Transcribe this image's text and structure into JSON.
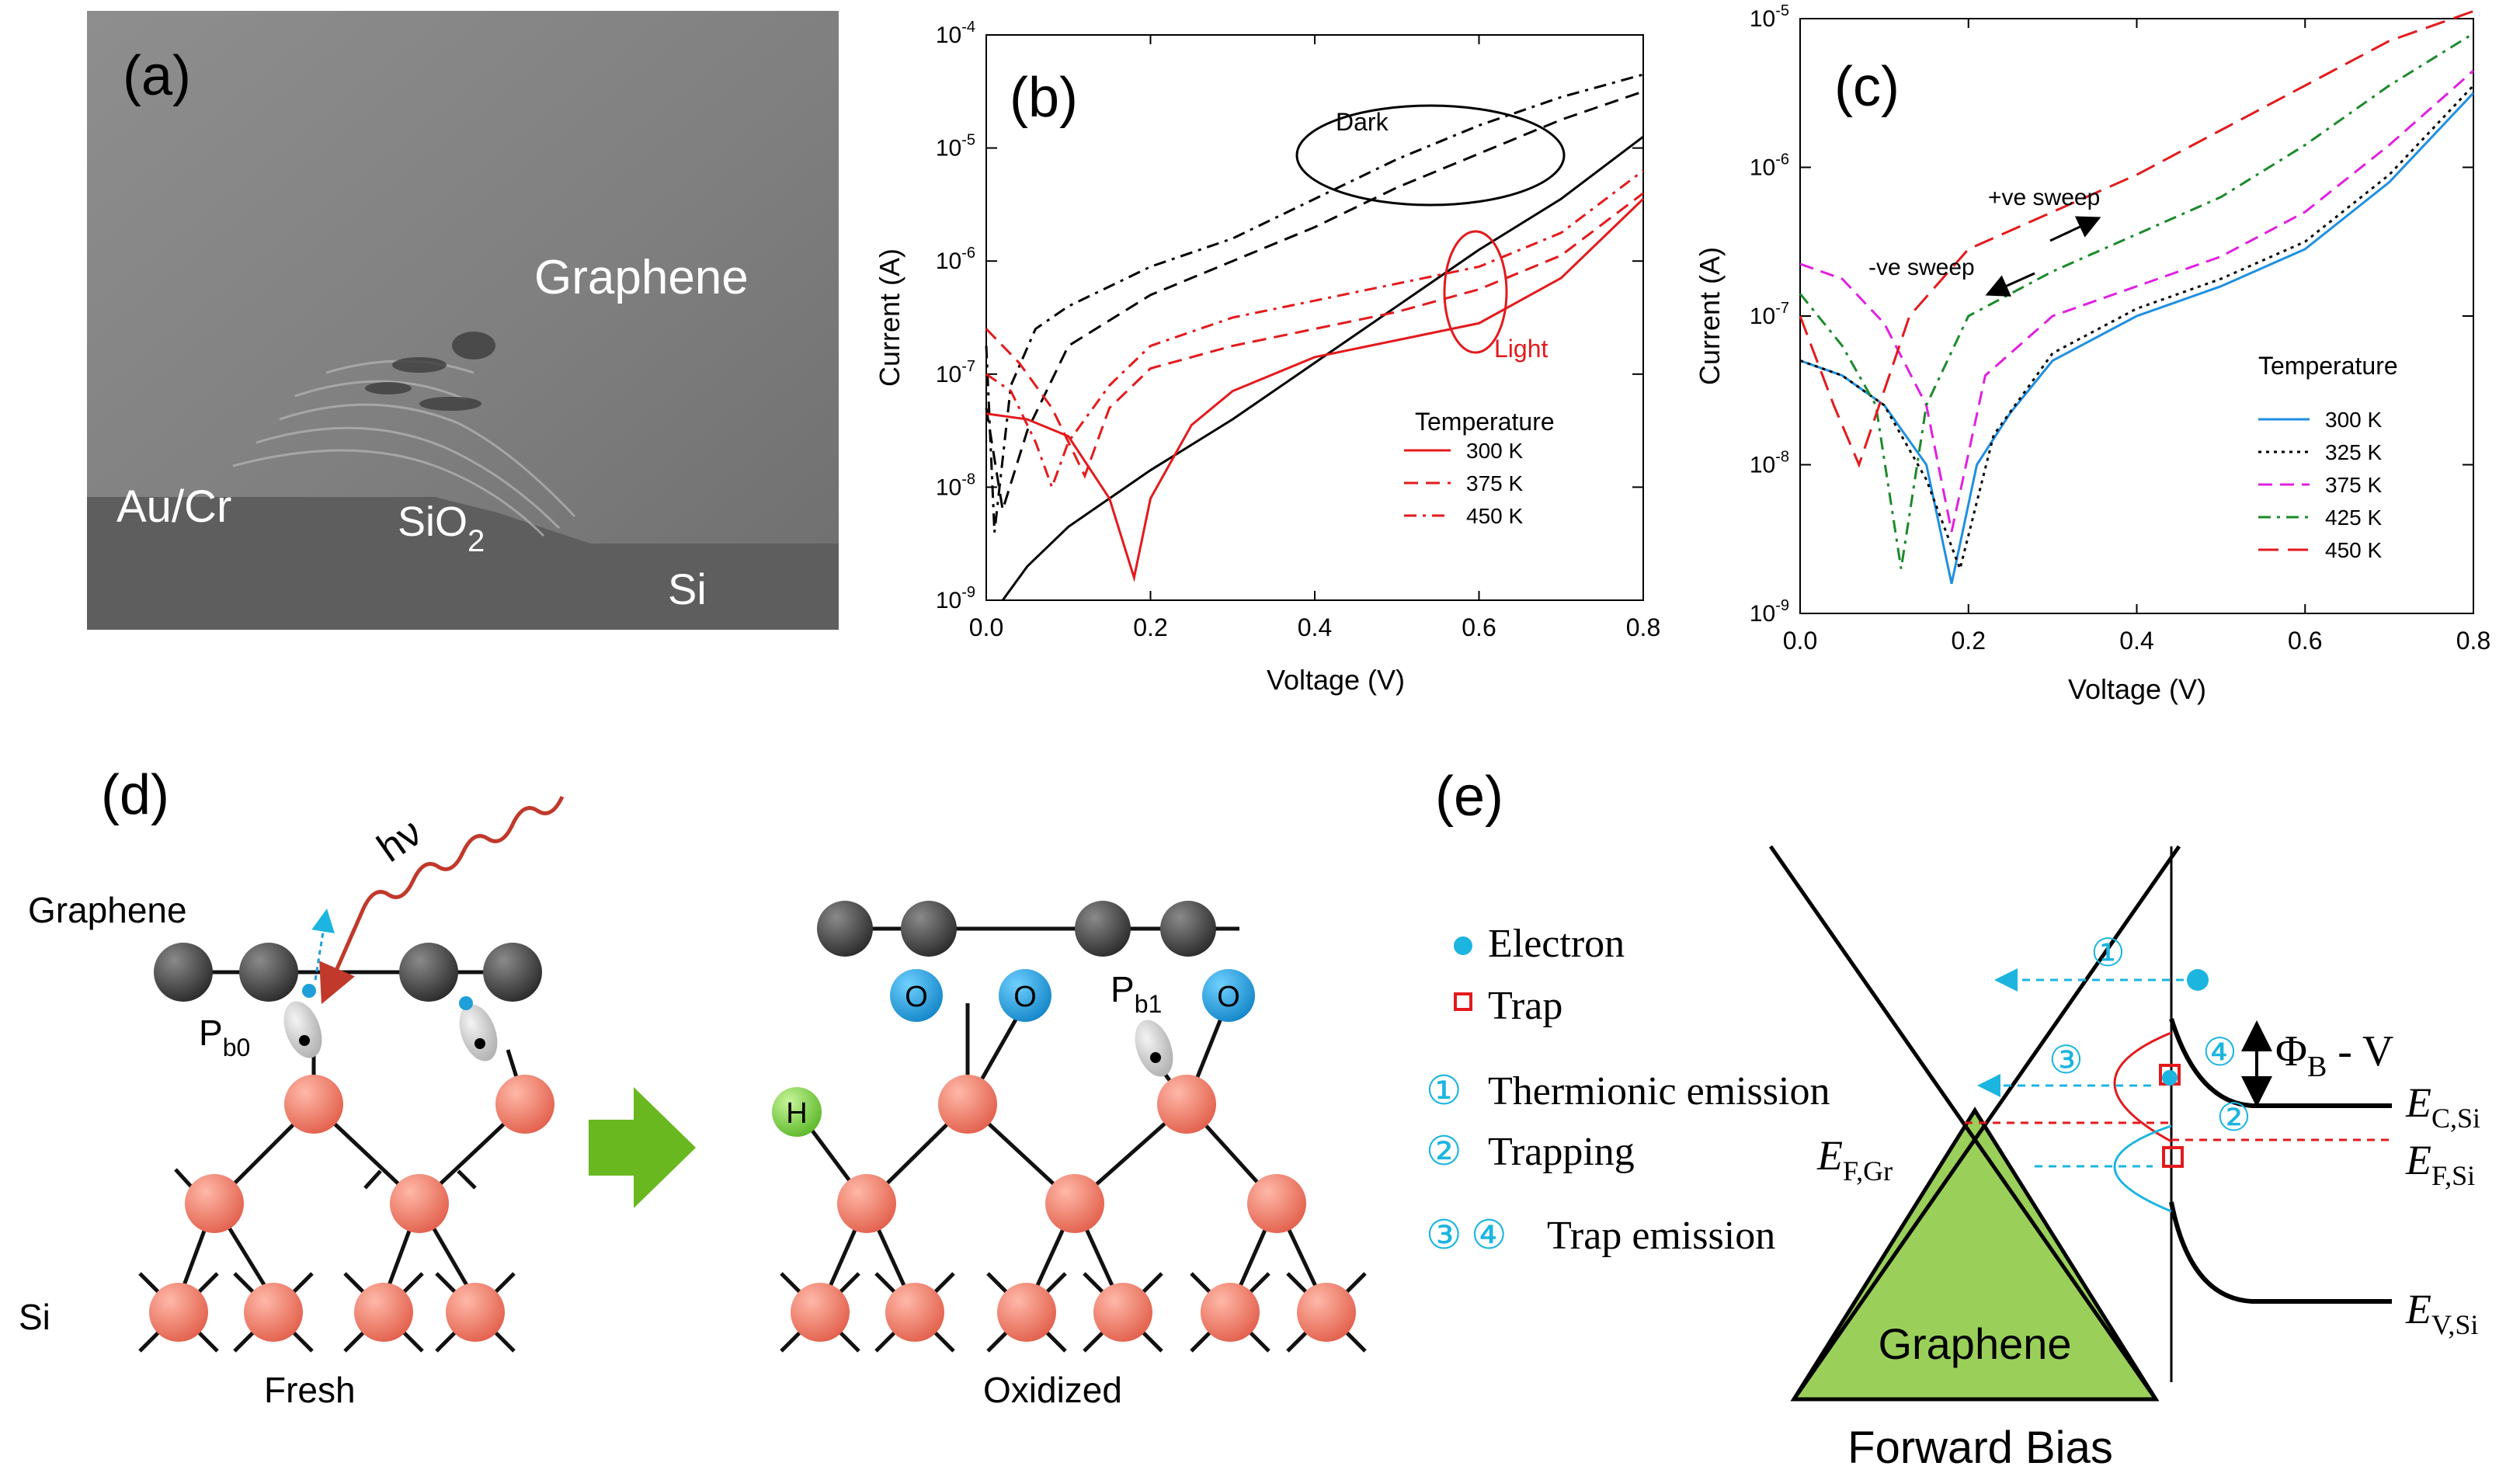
{
  "figure": {
    "panel_a": {
      "label": "(a)",
      "graphene": "Graphene",
      "aucr": "Au/Cr",
      "sio2_main": "SiO",
      "sio2_sub": "2",
      "si": "Si"
    },
    "panel_d": {
      "label": "(d)",
      "graphene": "Graphene",
      "si": "Si",
      "photon": "hν",
      "pb0_main": "P",
      "pb0_sub": "b0",
      "pb1_main": "P",
      "pb1_sub": "b1",
      "fresh": "Fresh",
      "oxidized": "Oxidized",
      "o_atom": "O",
      "h_atom": "H"
    },
    "panel_e": {
      "label": "(e)",
      "legend_electron": "Electron",
      "legend_trap": "Trap",
      "legend_1": "Thermionic  emission",
      "legend_2": "Trapping",
      "legend_34": "Trap emission",
      "num1": "①",
      "num2": "②",
      "num3": "③",
      "num4": "④",
      "graphene": "Graphene",
      "forward_bias": "Forward Bias",
      "phi_main": "Φ",
      "phi_sub": "B",
      "phi_rest": " - V",
      "efgr_main": "E",
      "efgr_sub": "F,Gr",
      "ecsi_main": "E",
      "ecsi_sub": "C,Si",
      "efsi_main": "E",
      "efsi_sub": "F,Si",
      "evsi_main": "E",
      "evsi_sub": "V,Si"
    },
    "colors": {
      "red": "#e31a1c",
      "cyan": "#1cb5e0",
      "green_fill": "#9ad05a",
      "arrow_green": "#6ab820",
      "si_atom": "#ef7f6e",
      "o_atom": "#1f9fd8",
      "c_atom": "#333333"
    }
  },
  "chart_data": [
    {
      "panel": "(b)",
      "type": "line",
      "xlabel": "Voltage  (V)",
      "ylabel": "Current (A)",
      "yscale": "log",
      "xlim": [
        0.0,
        0.8
      ],
      "ylim_log10": [
        -9,
        -4
      ],
      "xticks": [
        0.0,
        0.2,
        0.4,
        0.6,
        0.8
      ],
      "yticks_log10": [
        -9,
        -8,
        -7,
        -6,
        -5,
        -4
      ],
      "legend_title": "Temperature",
      "annotations": {
        "dark": "Dark",
        "light": "Light"
      },
      "series": [
        {
          "name": "300 K",
          "condition": "Dark",
          "color": "#000000",
          "dash": "solid",
          "x": [
            0.02,
            0.05,
            0.1,
            0.2,
            0.3,
            0.4,
            0.5,
            0.6,
            0.7,
            0.8
          ],
          "y_log10": [
            -9,
            -8.7,
            -8.35,
            -7.85,
            -7.4,
            -6.9,
            -6.4,
            -5.9,
            -5.45,
            -4.9
          ]
        },
        {
          "name": "375 K",
          "condition": "Dark",
          "color": "#000000",
          "dash": "dash",
          "x": [
            0.0,
            0.02,
            0.05,
            0.1,
            0.2,
            0.3,
            0.4,
            0.5,
            0.6,
            0.7,
            0.8
          ],
          "y_log10": [
            -7.3,
            -8.2,
            -7.5,
            -6.75,
            -6.3,
            -6.0,
            -5.7,
            -5.35,
            -5.05,
            -4.75,
            -4.5
          ]
        },
        {
          "name": "450 K",
          "condition": "Dark",
          "color": "#000000",
          "dash": "dashdot",
          "x": [
            0.0,
            0.01,
            0.03,
            0.06,
            0.1,
            0.2,
            0.3,
            0.4,
            0.5,
            0.6,
            0.7,
            0.8
          ],
          "y_log10": [
            -6.75,
            -8.4,
            -7.1,
            -6.6,
            -6.4,
            -6.05,
            -5.8,
            -5.45,
            -5.1,
            -4.8,
            -4.55,
            -4.35
          ]
        },
        {
          "name": "300 K",
          "condition": "Light",
          "color": "#e31a1c",
          "dash": "solid",
          "x": [
            0.0,
            0.05,
            0.1,
            0.15,
            0.18,
            0.2,
            0.25,
            0.3,
            0.4,
            0.5,
            0.6,
            0.7,
            0.8
          ],
          "y_log10": [
            -7.35,
            -7.4,
            -7.55,
            -8.1,
            -8.8,
            -8.1,
            -7.45,
            -7.15,
            -6.85,
            -6.7,
            -6.55,
            -6.15,
            -5.45
          ]
        },
        {
          "name": "375 K",
          "condition": "Light",
          "color": "#e31a1c",
          "dash": "dash",
          "x": [
            0.0,
            0.04,
            0.08,
            0.12,
            0.15,
            0.2,
            0.3,
            0.4,
            0.5,
            0.6,
            0.7,
            0.8
          ],
          "y_log10": [
            -6.6,
            -6.9,
            -7.3,
            -7.9,
            -7.3,
            -6.95,
            -6.75,
            -6.6,
            -6.45,
            -6.25,
            -5.95,
            -5.4
          ]
        },
        {
          "name": "450 K",
          "condition": "Light",
          "color": "#e31a1c",
          "dash": "dashdot",
          "x": [
            0.0,
            0.03,
            0.06,
            0.08,
            0.1,
            0.15,
            0.2,
            0.3,
            0.4,
            0.5,
            0.6,
            0.7,
            0.8
          ],
          "y_log10": [
            -7.0,
            -7.15,
            -7.6,
            -8.0,
            -7.6,
            -7.1,
            -6.75,
            -6.5,
            -6.35,
            -6.2,
            -6.05,
            -5.75,
            -5.2
          ]
        }
      ]
    },
    {
      "panel": "(c)",
      "type": "line",
      "xlabel": "Voltage  (V)",
      "ylabel": "Current (A)",
      "yscale": "log",
      "xlim": [
        0.0,
        0.8
      ],
      "ylim_log10": [
        -9,
        -5
      ],
      "xticks": [
        0.0,
        0.2,
        0.4,
        0.6,
        0.8
      ],
      "yticks_log10": [
        -9,
        -8,
        -7,
        -6,
        -5
      ],
      "legend_title": "Temperature",
      "annotations": {
        "pos_sweep": "+ve sweep",
        "neg_sweep": "-ve sweep"
      },
      "series": [
        {
          "name": "300 K",
          "color": "#1f8fe0",
          "dash": "solid",
          "x": [
            0.0,
            0.05,
            0.1,
            0.15,
            0.18,
            0.21,
            0.25,
            0.3,
            0.4,
            0.5,
            0.6,
            0.7,
            0.8
          ],
          "y_log10": [
            -7.3,
            -7.4,
            -7.6,
            -8.0,
            -8.8,
            -8.0,
            -7.65,
            -7.3,
            -7.0,
            -6.8,
            -6.55,
            -6.1,
            -5.5
          ]
        },
        {
          "name": "325 K",
          "color": "#000000",
          "dash": "dot",
          "x": [
            0.0,
            0.05,
            0.1,
            0.15,
            0.19,
            0.23,
            0.3,
            0.4,
            0.5,
            0.6,
            0.7,
            0.8
          ],
          "y_log10": [
            -7.3,
            -7.4,
            -7.6,
            -8.1,
            -8.7,
            -7.8,
            -7.25,
            -6.95,
            -6.75,
            -6.5,
            -6.05,
            -5.45
          ]
        },
        {
          "name": "375 K",
          "color": "#e020e0",
          "dash": "dash",
          "x": [
            0.0,
            0.05,
            0.1,
            0.15,
            0.18,
            0.22,
            0.3,
            0.4,
            0.5,
            0.6,
            0.7,
            0.8
          ],
          "y_log10": [
            -6.65,
            -6.75,
            -7.05,
            -7.6,
            -8.45,
            -7.4,
            -7.0,
            -6.8,
            -6.6,
            -6.3,
            -5.85,
            -5.35
          ]
        },
        {
          "name": "425 K",
          "color": "#1a8a2a",
          "dash": "dashdot",
          "x": [
            0.0,
            0.05,
            0.09,
            0.12,
            0.15,
            0.2,
            0.3,
            0.4,
            0.5,
            0.6,
            0.7,
            0.8
          ],
          "y_log10": [
            -6.85,
            -7.2,
            -7.6,
            -8.7,
            -7.6,
            -7.0,
            -6.7,
            -6.45,
            -6.2,
            -5.85,
            -5.45,
            -5.1
          ]
        },
        {
          "name": "450 K",
          "color": "#e31a1c",
          "dash": "longdash",
          "x": [
            0.0,
            0.04,
            0.07,
            0.1,
            0.13,
            0.2,
            0.3,
            0.4,
            0.5,
            0.6,
            0.7,
            0.8
          ],
          "y_log10": [
            -7.0,
            -7.6,
            -8.0,
            -7.5,
            -7.0,
            -6.55,
            -6.3,
            -6.05,
            -5.75,
            -5.45,
            -5.15,
            -4.95
          ]
        }
      ]
    }
  ]
}
